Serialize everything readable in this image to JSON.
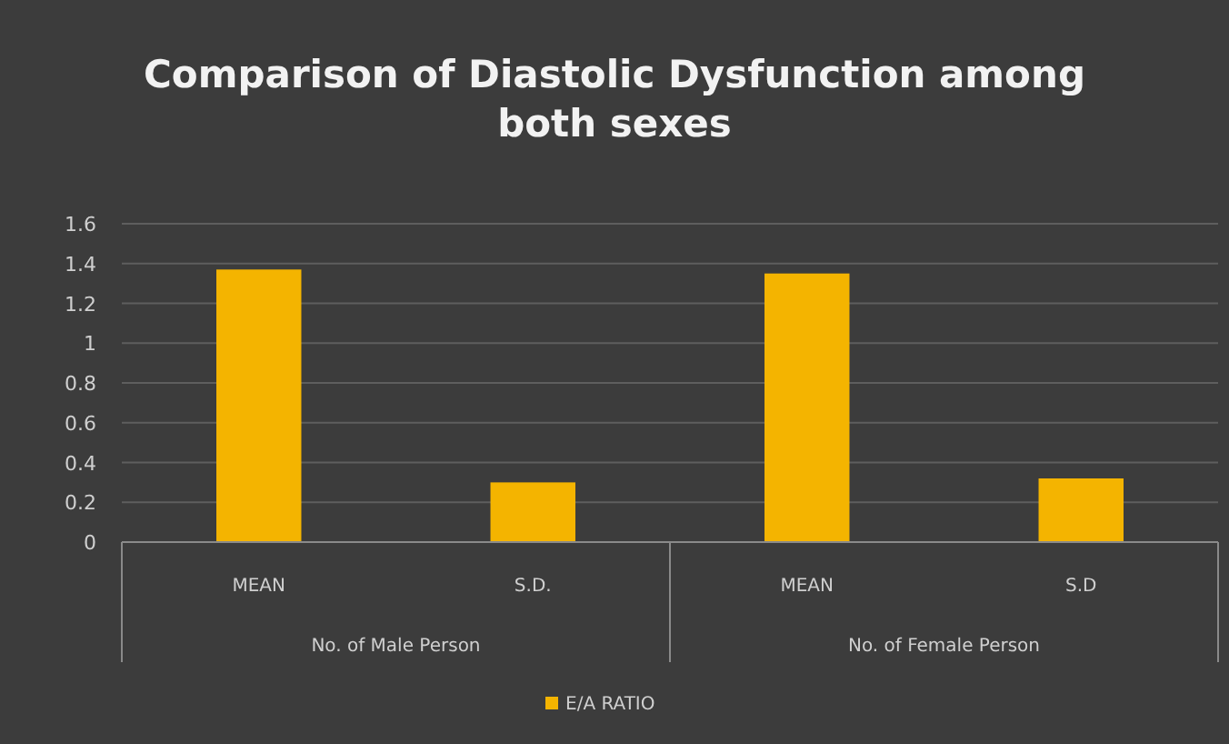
{
  "chart_data": {
    "type": "bar",
    "title": "Comparison of Diastolic Dysfunction among both sexes",
    "categories": [
      "MEAN",
      "S.D.",
      "MEAN",
      "S.D"
    ],
    "series": [
      {
        "name": "E/A RATIO",
        "color": "#f4b400",
        "values": [
          1.37,
          0.3,
          1.35,
          0.32
        ]
      }
    ],
    "ylim": [
      0,
      1.6
    ],
    "yticks": [
      0,
      0.2,
      0.4,
      0.6,
      0.8,
      1,
      1.2,
      1.4,
      1.6
    ],
    "grid": "y",
    "legend": "bottom",
    "annotations": [
      "No. of Male Person",
      "No. of Female Person"
    ]
  }
}
